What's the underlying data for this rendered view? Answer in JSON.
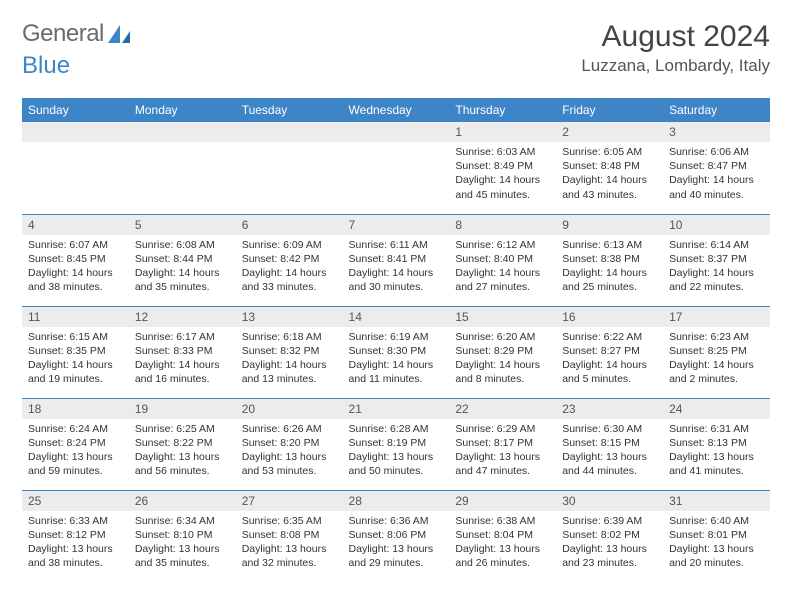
{
  "logo": {
    "text1": "General",
    "text2": "Blue"
  },
  "title": "August 2024",
  "location": "Luzzana, Lombardy, Italy",
  "colors": {
    "header_blue": "#3d85c6",
    "grey_bg": "#ececec",
    "text_grey": "#555555"
  },
  "day_headers": [
    "Sunday",
    "Monday",
    "Tuesday",
    "Wednesday",
    "Thursday",
    "Friday",
    "Saturday"
  ],
  "weeks": [
    [
      null,
      null,
      null,
      null,
      {
        "n": "1",
        "sr": "6:03 AM",
        "ss": "8:49 PM",
        "dl": "14 hours and 45 minutes."
      },
      {
        "n": "2",
        "sr": "6:05 AM",
        "ss": "8:48 PM",
        "dl": "14 hours and 43 minutes."
      },
      {
        "n": "3",
        "sr": "6:06 AM",
        "ss": "8:47 PM",
        "dl": "14 hours and 40 minutes."
      }
    ],
    [
      {
        "n": "4",
        "sr": "6:07 AM",
        "ss": "8:45 PM",
        "dl": "14 hours and 38 minutes."
      },
      {
        "n": "5",
        "sr": "6:08 AM",
        "ss": "8:44 PM",
        "dl": "14 hours and 35 minutes."
      },
      {
        "n": "6",
        "sr": "6:09 AM",
        "ss": "8:42 PM",
        "dl": "14 hours and 33 minutes."
      },
      {
        "n": "7",
        "sr": "6:11 AM",
        "ss": "8:41 PM",
        "dl": "14 hours and 30 minutes."
      },
      {
        "n": "8",
        "sr": "6:12 AM",
        "ss": "8:40 PM",
        "dl": "14 hours and 27 minutes."
      },
      {
        "n": "9",
        "sr": "6:13 AM",
        "ss": "8:38 PM",
        "dl": "14 hours and 25 minutes."
      },
      {
        "n": "10",
        "sr": "6:14 AM",
        "ss": "8:37 PM",
        "dl": "14 hours and 22 minutes."
      }
    ],
    [
      {
        "n": "11",
        "sr": "6:15 AM",
        "ss": "8:35 PM",
        "dl": "14 hours and 19 minutes."
      },
      {
        "n": "12",
        "sr": "6:17 AM",
        "ss": "8:33 PM",
        "dl": "14 hours and 16 minutes."
      },
      {
        "n": "13",
        "sr": "6:18 AM",
        "ss": "8:32 PM",
        "dl": "14 hours and 13 minutes."
      },
      {
        "n": "14",
        "sr": "6:19 AM",
        "ss": "8:30 PM",
        "dl": "14 hours and 11 minutes."
      },
      {
        "n": "15",
        "sr": "6:20 AM",
        "ss": "8:29 PM",
        "dl": "14 hours and 8 minutes."
      },
      {
        "n": "16",
        "sr": "6:22 AM",
        "ss": "8:27 PM",
        "dl": "14 hours and 5 minutes."
      },
      {
        "n": "17",
        "sr": "6:23 AM",
        "ss": "8:25 PM",
        "dl": "14 hours and 2 minutes."
      }
    ],
    [
      {
        "n": "18",
        "sr": "6:24 AM",
        "ss": "8:24 PM",
        "dl": "13 hours and 59 minutes."
      },
      {
        "n": "19",
        "sr": "6:25 AM",
        "ss": "8:22 PM",
        "dl": "13 hours and 56 minutes."
      },
      {
        "n": "20",
        "sr": "6:26 AM",
        "ss": "8:20 PM",
        "dl": "13 hours and 53 minutes."
      },
      {
        "n": "21",
        "sr": "6:28 AM",
        "ss": "8:19 PM",
        "dl": "13 hours and 50 minutes."
      },
      {
        "n": "22",
        "sr": "6:29 AM",
        "ss": "8:17 PM",
        "dl": "13 hours and 47 minutes."
      },
      {
        "n": "23",
        "sr": "6:30 AM",
        "ss": "8:15 PM",
        "dl": "13 hours and 44 minutes."
      },
      {
        "n": "24",
        "sr": "6:31 AM",
        "ss": "8:13 PM",
        "dl": "13 hours and 41 minutes."
      }
    ],
    [
      {
        "n": "25",
        "sr": "6:33 AM",
        "ss": "8:12 PM",
        "dl": "13 hours and 38 minutes."
      },
      {
        "n": "26",
        "sr": "6:34 AM",
        "ss": "8:10 PM",
        "dl": "13 hours and 35 minutes."
      },
      {
        "n": "27",
        "sr": "6:35 AM",
        "ss": "8:08 PM",
        "dl": "13 hours and 32 minutes."
      },
      {
        "n": "28",
        "sr": "6:36 AM",
        "ss": "8:06 PM",
        "dl": "13 hours and 29 minutes."
      },
      {
        "n": "29",
        "sr": "6:38 AM",
        "ss": "8:04 PM",
        "dl": "13 hours and 26 minutes."
      },
      {
        "n": "30",
        "sr": "6:39 AM",
        "ss": "8:02 PM",
        "dl": "13 hours and 23 minutes."
      },
      {
        "n": "31",
        "sr": "6:40 AM",
        "ss": "8:01 PM",
        "dl": "13 hours and 20 minutes."
      }
    ]
  ],
  "labels": {
    "sunrise": "Sunrise:",
    "sunset": "Sunset:",
    "daylight": "Daylight:"
  }
}
